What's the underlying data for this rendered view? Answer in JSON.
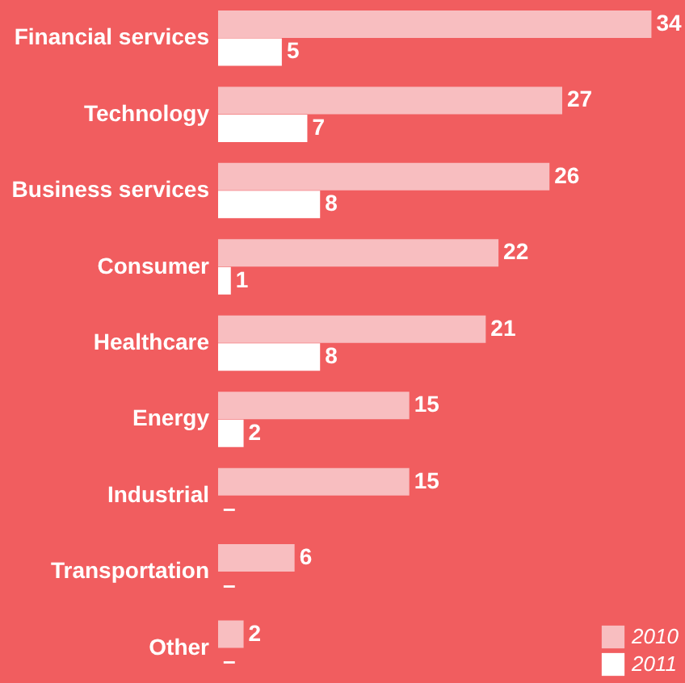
{
  "chart_data": {
    "type": "bar",
    "orientation": "horizontal",
    "categories": [
      "Financial services",
      "Technology",
      "Business services",
      "Consumer",
      "Healthcare",
      "Energy",
      "Industrial",
      "Transportation",
      "Other"
    ],
    "series": [
      {
        "name": "2010",
        "color": "#f8bec0",
        "values": [
          34,
          27,
          26,
          22,
          21,
          15,
          15,
          6,
          2
        ],
        "value_labels": [
          "34",
          "27",
          "26",
          "22",
          "21",
          "15",
          "15",
          "6",
          "2"
        ]
      },
      {
        "name": "2011",
        "color": "#ffffff",
        "values": [
          5,
          7,
          8,
          1,
          8,
          2,
          null,
          null,
          null
        ],
        "value_labels": [
          "5",
          "7",
          "8",
          "1",
          "8",
          "2",
          "–",
          "–",
          "–"
        ]
      }
    ],
    "legend": "bottom right",
    "grid": false
  }
}
